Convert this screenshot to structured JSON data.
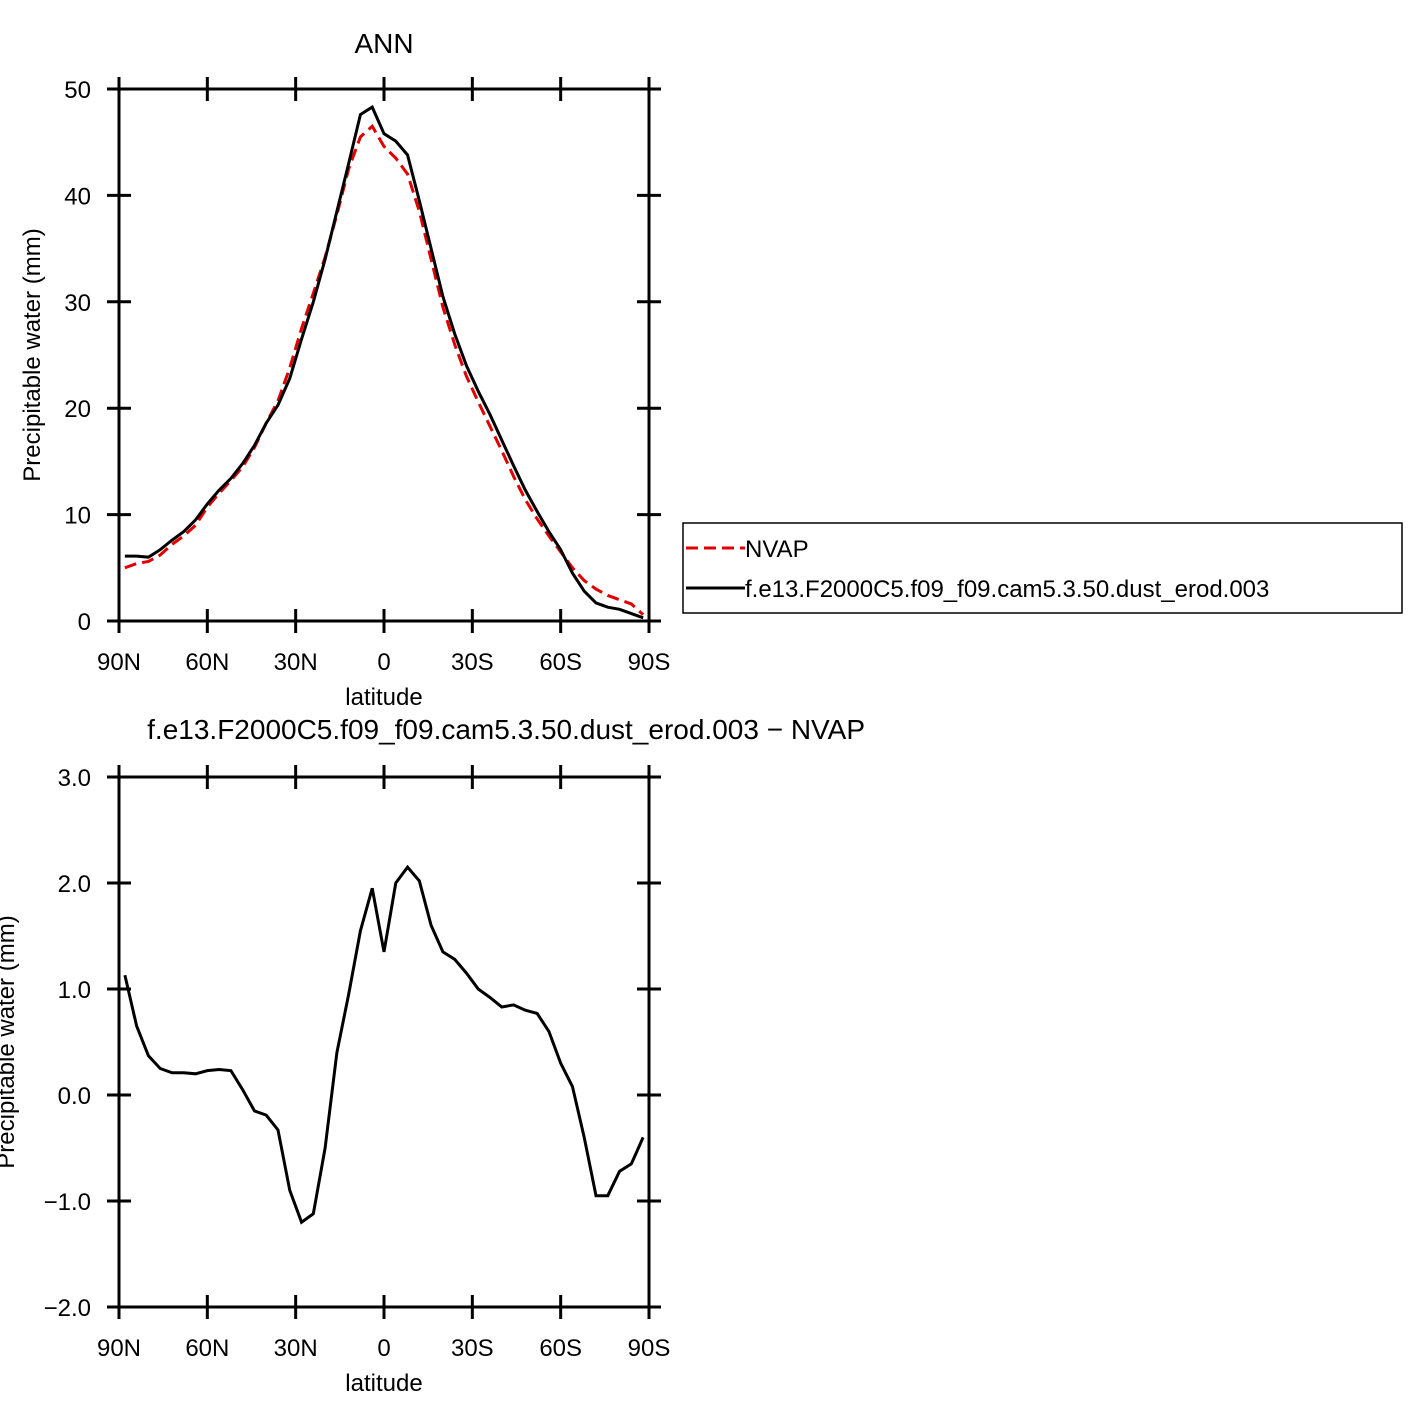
{
  "chart_data": [
    {
      "type": "line",
      "title": "ANN",
      "xlabel": "latitude",
      "ylabel": "Precipitable water (mm)",
      "x": [
        88,
        84,
        80,
        76,
        72,
        68,
        64,
        60,
        56,
        52,
        48,
        44,
        40,
        36,
        32,
        28,
        24,
        20,
        16,
        12,
        8,
        4,
        0,
        -4,
        -8,
        -12,
        -16,
        -20,
        -24,
        -28,
        -32,
        -36,
        -40,
        -44,
        -48,
        -52,
        -56,
        -60,
        -64,
        -68,
        -72,
        -76,
        -80,
        -84,
        -88
      ],
      "xlim": [
        90,
        -90
      ],
      "xticks": [
        {
          "value": 90,
          "label": "90N"
        },
        {
          "value": 60,
          "label": "60N"
        },
        {
          "value": 30,
          "label": "30N"
        },
        0,
        {
          "value": -30,
          "label": "30S"
        },
        {
          "value": -60,
          "label": "60S"
        },
        {
          "value": -90,
          "label": "90S"
        }
      ],
      "ylim": [
        0,
        50
      ],
      "yticks": [
        0,
        10,
        20,
        30,
        40,
        50
      ],
      "legend": "right",
      "series": [
        {
          "name": "NVAP",
          "color": "#e00000",
          "style": "dashed",
          "values": [
            5.0,
            5.4,
            5.6,
            6.2,
            7.2,
            8.0,
            9.0,
            10.7,
            12.0,
            13.2,
            14.5,
            16.3,
            18.6,
            20.7,
            23.8,
            27.5,
            30.8,
            34.2,
            38.2,
            42.5,
            45.5,
            46.5,
            44.6,
            43.5,
            42.0,
            38.5,
            34.0,
            29.5,
            26.0,
            23.0,
            20.6,
            18.3,
            16.0,
            13.6,
            11.4,
            9.6,
            8.0,
            6.5,
            5.0,
            3.8,
            3.0,
            2.4,
            2.0,
            1.6,
            0.6
          ]
        },
        {
          "name": "f.e13.F2000C5.f09_f09.cam5.3.50.dust_erod.003",
          "color": "#000000",
          "style": "solid",
          "values": [
            6.1,
            6.1,
            6.0,
            6.7,
            7.6,
            8.4,
            9.5,
            11.0,
            12.3,
            13.4,
            14.8,
            16.5,
            18.6,
            20.3,
            22.8,
            26.5,
            30.0,
            34.0,
            38.5,
            43.0,
            47.6,
            48.3,
            45.8,
            45.1,
            43.8,
            39.5,
            35.0,
            30.5,
            27.0,
            24.0,
            21.6,
            19.4,
            17.0,
            14.6,
            12.3,
            10.3,
            8.4,
            6.7,
            4.5,
            2.8,
            1.7,
            1.3,
            1.1,
            0.7,
            0.3
          ]
        }
      ]
    },
    {
      "type": "line",
      "title": "f.e13.F2000C5.f09_f09.cam5.3.50.dust_erod.003 − NVAP",
      "xlabel": "latitude",
      "ylabel": "Precipitable water (mm)",
      "x": [
        88,
        84,
        80,
        76,
        72,
        68,
        64,
        60,
        56,
        52,
        48,
        44,
        40,
        36,
        32,
        28,
        24,
        20,
        16,
        12,
        8,
        4,
        0,
        -4,
        -8,
        -12,
        -16,
        -20,
        -24,
        -28,
        -32,
        -36,
        -40,
        -44,
        -48,
        -52,
        -56,
        -60,
        -64,
        -68,
        -72,
        -76,
        -80,
        -84,
        -88
      ],
      "xlim": [
        90,
        -90
      ],
      "xticks": [
        {
          "value": 90,
          "label": "90N"
        },
        {
          "value": 60,
          "label": "60N"
        },
        {
          "value": 30,
          "label": "30N"
        },
        0,
        {
          "value": -30,
          "label": "30S"
        },
        {
          "value": -60,
          "label": "60S"
        },
        {
          "value": -90,
          "label": "90S"
        }
      ],
      "ylim": [
        -2,
        3
      ],
      "yticks": [
        {
          "value": -2,
          "label": "−2.0"
        },
        {
          "value": -1,
          "label": "−1.0"
        },
        {
          "value": 0,
          "label": "0.0"
        },
        {
          "value": 1,
          "label": "1.0"
        },
        {
          "value": 2,
          "label": "2.0"
        },
        {
          "value": 3,
          "label": "3.0"
        }
      ],
      "color": "#000000",
      "values": [
        1.13,
        0.65,
        0.37,
        0.25,
        0.21,
        0.21,
        0.2,
        0.23,
        0.24,
        0.23,
        0.05,
        -0.15,
        -0.19,
        -0.33,
        -0.9,
        -1.2,
        -1.12,
        -0.5,
        0.4,
        0.95,
        1.55,
        1.95,
        1.35,
        2.0,
        2.15,
        2.02,
        1.6,
        1.35,
        1.28,
        1.15,
        1.0,
        0.92,
        0.83,
        0.85,
        0.8,
        0.77,
        0.6,
        0.3,
        0.08,
        -0.4,
        -0.95,
        -0.95,
        -0.72,
        -0.65,
        -0.4
      ]
    }
  ]
}
